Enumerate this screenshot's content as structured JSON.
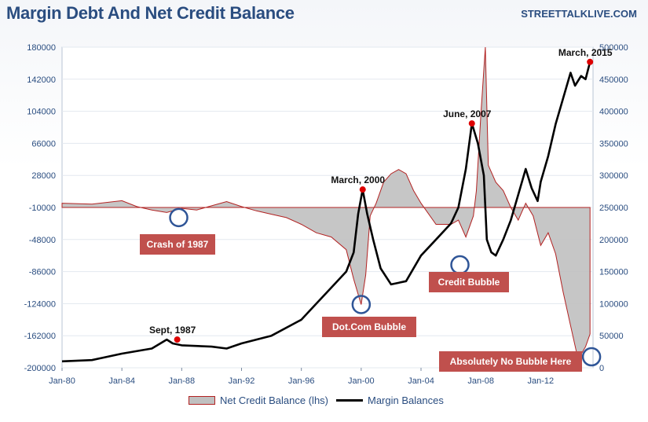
{
  "header": {
    "title": "Margin Debt And Net Credit Balance",
    "brand": "STREETTALKLIVE.COM"
  },
  "colors": {
    "area_fill": "#c0c0c0",
    "area_stroke": "#b22222",
    "line": "#000000",
    "marker": "#dd0000",
    "callout_bg": "#c0504d",
    "circle": "#2f5597",
    "text_blue": "#2a4d80"
  },
  "chart_data": {
    "type": "area+line",
    "x_ticks": [
      "Jan-80",
      "Jan-84",
      "Jan-88",
      "Jan-92",
      "Jan-96",
      "Jan-00",
      "Jan-04",
      "Jan-08",
      "Jan-12"
    ],
    "x_range_years": [
      1980,
      2015.5
    ],
    "left_axis": {
      "label": "Net Credit Balance (lhs)",
      "min": -200000,
      "max": 180000,
      "ticks": [
        "180000",
        "142000",
        "104000",
        "66000",
        "28000",
        "-10000",
        "-48000",
        "-86000",
        "-124000",
        "-162000",
        "-200000"
      ]
    },
    "right_axis": {
      "label": "Margin Balances",
      "min": 0,
      "max": 500000,
      "ticks": [
        "500000",
        "450000",
        "400000",
        "350000",
        "300000",
        "250000",
        "200000",
        "150000",
        "100000",
        "50000",
        "0"
      ]
    },
    "series": [
      {
        "name": "Net Credit Balance (lhs)",
        "axis": "left",
        "style": "area",
        "points": [
          [
            1980,
            -5000
          ],
          [
            1982,
            -6000
          ],
          [
            1984,
            -2000
          ],
          [
            1985,
            -9000
          ],
          [
            1986,
            -13000
          ],
          [
            1987,
            -16000
          ],
          [
            1988,
            -11000
          ],
          [
            1989,
            -13000
          ],
          [
            1990,
            -8000
          ],
          [
            1991,
            -3000
          ],
          [
            1992,
            -9000
          ],
          [
            1993,
            -14000
          ],
          [
            1994,
            -18000
          ],
          [
            1995,
            -22000
          ],
          [
            1996,
            -30000
          ],
          [
            1997,
            -40000
          ],
          [
            1998,
            -45000
          ],
          [
            1999,
            -60000
          ],
          [
            1999.5,
            -95000
          ],
          [
            2000,
            -125000
          ],
          [
            2000.3,
            -90000
          ],
          [
            2000.6,
            -20000
          ],
          [
            2001,
            -5000
          ],
          [
            2001.5,
            20000
          ],
          [
            2002,
            30000
          ],
          [
            2002.5,
            35000
          ],
          [
            2003,
            30000
          ],
          [
            2003.5,
            10000
          ],
          [
            2004,
            -5000
          ],
          [
            2005,
            -30000
          ],
          [
            2006,
            -30000
          ],
          [
            2006.5,
            -25000
          ],
          [
            2007,
            -45000
          ],
          [
            2007.5,
            -20000
          ],
          [
            2007.7,
            10000
          ],
          [
            2008,
            100000
          ],
          [
            2008.3,
            180000
          ],
          [
            2008.5,
            40000
          ],
          [
            2009,
            20000
          ],
          [
            2009.5,
            10000
          ],
          [
            2010,
            -10000
          ],
          [
            2010.5,
            -25000
          ],
          [
            2011,
            -5000
          ],
          [
            2011.5,
            -20000
          ],
          [
            2012,
            -55000
          ],
          [
            2012.5,
            -40000
          ],
          [
            2013,
            -65000
          ],
          [
            2013.5,
            -110000
          ],
          [
            2014,
            -150000
          ],
          [
            2014.5,
            -190000
          ],
          [
            2015,
            -175000
          ],
          [
            2015.3,
            -160000
          ]
        ]
      },
      {
        "name": "Margin Balances",
        "axis": "right",
        "style": "line",
        "points": [
          [
            1980,
            10000
          ],
          [
            1982,
            12000
          ],
          [
            1984,
            22000
          ],
          [
            1986,
            30000
          ],
          [
            1987,
            44000
          ],
          [
            1987.4,
            38000
          ],
          [
            1988,
            35000
          ],
          [
            1990,
            33000
          ],
          [
            1991,
            30000
          ],
          [
            1992,
            38000
          ],
          [
            1994,
            50000
          ],
          [
            1996,
            75000
          ],
          [
            1997,
            100000
          ],
          [
            1998,
            125000
          ],
          [
            1999,
            150000
          ],
          [
            1999.5,
            180000
          ],
          [
            1999.8,
            240000
          ],
          [
            2000.1,
            278000
          ],
          [
            2000.4,
            240000
          ],
          [
            2000.8,
            200000
          ],
          [
            2001.3,
            155000
          ],
          [
            2002,
            130000
          ],
          [
            2003,
            135000
          ],
          [
            2004,
            175000
          ],
          [
            2005,
            200000
          ],
          [
            2006,
            225000
          ],
          [
            2006.5,
            250000
          ],
          [
            2007,
            310000
          ],
          [
            2007.4,
            381000
          ],
          [
            2007.8,
            350000
          ],
          [
            2008.2,
            300000
          ],
          [
            2008.4,
            200000
          ],
          [
            2008.7,
            180000
          ],
          [
            2009,
            175000
          ],
          [
            2009.5,
            200000
          ],
          [
            2010,
            230000
          ],
          [
            2010.5,
            270000
          ],
          [
            2011,
            310000
          ],
          [
            2011.4,
            280000
          ],
          [
            2011.8,
            260000
          ],
          [
            2012,
            290000
          ],
          [
            2012.5,
            330000
          ],
          [
            2013,
            380000
          ],
          [
            2013.5,
            420000
          ],
          [
            2014,
            460000
          ],
          [
            2014.3,
            440000
          ],
          [
            2014.7,
            455000
          ],
          [
            2015,
            450000
          ],
          [
            2015.3,
            477000
          ]
        ]
      }
    ],
    "annotations": [
      {
        "text": "Sept, 1987",
        "year": 1987.7,
        "value": 44000,
        "axis": "right",
        "marker": true
      },
      {
        "text": "March, 2000",
        "year": 2000.1,
        "value": 278000,
        "axis": "right",
        "marker": true
      },
      {
        "text": "June, 2007",
        "year": 2007.4,
        "value": 381000,
        "axis": "right",
        "marker": true
      },
      {
        "text": "March, 2015",
        "year": 2015.3,
        "value": 477000,
        "axis": "right",
        "marker": true
      }
    ],
    "callouts": [
      {
        "text": "Crash of 1987",
        "circle_year": 1987.8,
        "circle_value": -22000
      },
      {
        "text": "Dot.Com Bubble",
        "circle_year": 2000.0,
        "circle_value": -125000
      },
      {
        "text": "Credit Bubble",
        "circle_year": 2006.6,
        "circle_value": -78000
      },
      {
        "text": "Absolutely No Bubble Here",
        "circle_year": 2015.4,
        "circle_value": -187000
      }
    ]
  }
}
